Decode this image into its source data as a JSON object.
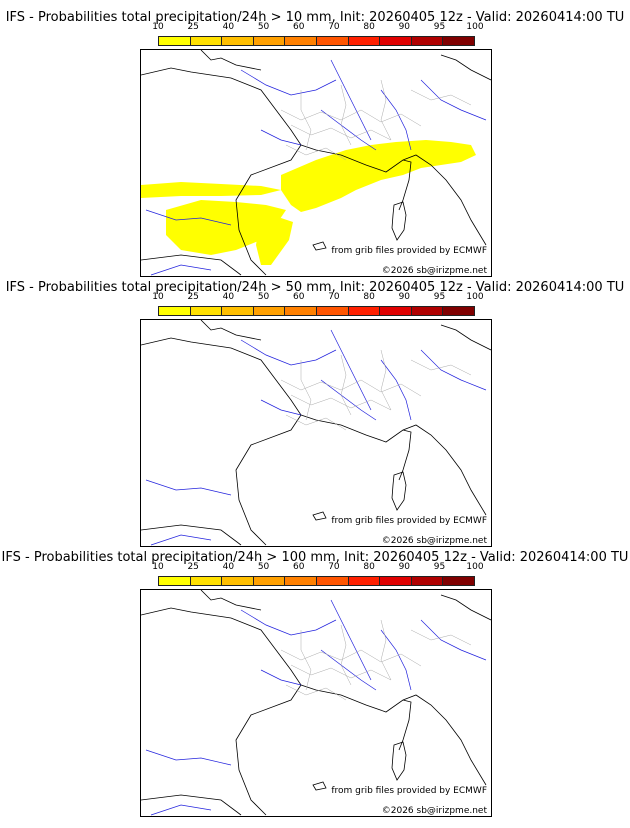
{
  "colorbar": {
    "ticks": [
      "10",
      "25",
      "40",
      "50",
      "60",
      "70",
      "80",
      "90",
      "95",
      "100"
    ],
    "colors": [
      "#ffff00",
      "#ffe000",
      "#ffbf00",
      "#ffa000",
      "#ff8000",
      "#ff5500",
      "#ff2000",
      "#e00000",
      "#b00000",
      "#800000"
    ]
  },
  "panels": [
    {
      "title": "IFS - Probabilities total precipitation/24h > 10 mm, Init: 20260405 12z - Valid: 20260414:00 TU",
      "credit": "from grib files provided by ECMWF",
      "copyright": "©2026 sb@irizpme.net"
    },
    {
      "title": "IFS - Probabilities total precipitation/24h > 50 mm, Init: 20260405 12z - Valid: 20260414:00 TU",
      "credit": "from grib files provided by ECMWF",
      "copyright": "©2026 sb@irizpme.net"
    },
    {
      "title": "IFS - Probabilities total precipitation/24h > 100 mm, Init: 20260405 12z - Valid: 20260414:00 TU",
      "credit": "from grib files provided by ECMWF",
      "copyright": "©2026 sb@irizpme.net"
    }
  ]
}
